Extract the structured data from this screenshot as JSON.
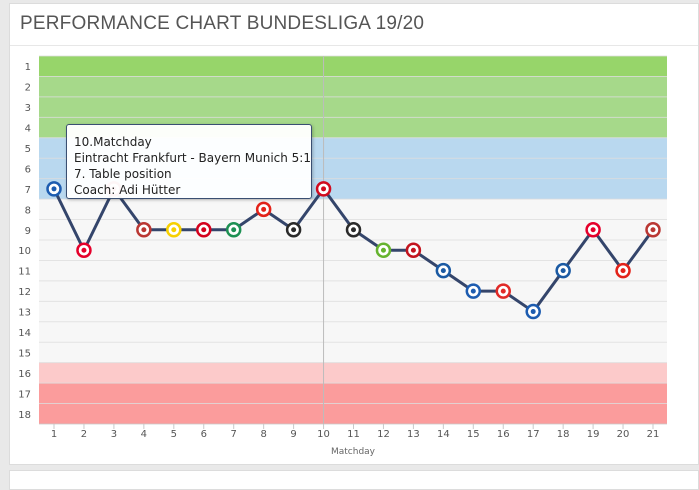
{
  "page": {
    "title": "PERFORMANCE CHART BUNDESLIGA 19/20"
  },
  "tooltip": {
    "line1": "10.Matchday",
    "line2": "Eintracht Frankfurt - Bayern Munich 5:1",
    "line3": "7. Table position",
    "line4": "Coach: Adi Hütter"
  },
  "chart_data": {
    "type": "line",
    "title": "PERFORMANCE CHART BUNDESLIGA 19/20",
    "xlabel": "Matchday",
    "ylabel": "",
    "x": [
      1,
      2,
      3,
      4,
      5,
      6,
      7,
      8,
      9,
      10,
      11,
      12,
      13,
      14,
      15,
      16,
      17,
      18,
      19,
      20,
      21
    ],
    "series": [
      {
        "values": [
          7,
          10,
          7,
          9,
          9,
          9,
          9,
          8,
          9,
          7,
          9,
          10,
          10,
          11,
          12,
          12,
          13,
          11,
          9,
          11,
          9
        ]
      }
    ],
    "xlim": [
      1,
      21
    ],
    "ylim": [
      18,
      1
    ],
    "y_reversed": true,
    "y_ticks": [
      1,
      2,
      3,
      4,
      5,
      6,
      7,
      8,
      9,
      10,
      11,
      12,
      13,
      14,
      15,
      16,
      17,
      18
    ],
    "grid": true,
    "highlighted_x": 10,
    "opponent_icons": [
      "hoffenheim-icon",
      "leipzig-icon",
      "bayern-icon",
      "augsburg-icon",
      "dortmund-icon",
      "union-icon",
      "bremen-icon",
      "leverkusen-icon",
      "gladbach-icon",
      "bayern-icon",
      "freiburg-icon",
      "wolfsburg-icon",
      "mainz-icon",
      "hertha-icon",
      "schalke-icon",
      "koeln-icon",
      "hoffenheim-icon",
      "hertha-icon",
      "leipzig-icon",
      "duesseldorf-icon",
      "augsburg-icon"
    ],
    "bands": [
      {
        "from": 1,
        "to": 4,
        "color": "#a6d98a"
      },
      {
        "from": 5,
        "to": 7,
        "color": "#b9d8ef"
      },
      {
        "from": 8,
        "to": 15,
        "color": "#f7f7f7"
      },
      {
        "from": 16,
        "to": 16,
        "color": "#fccaca"
      },
      {
        "from": 17,
        "to": 18,
        "color": "#fb9c9c"
      }
    ],
    "top_row_color": "#97d56a",
    "line_color": "#34456b"
  },
  "colors": {
    "grid": "#dddddd",
    "axis_text": "#555555",
    "marker_fill": "#ffffff"
  }
}
